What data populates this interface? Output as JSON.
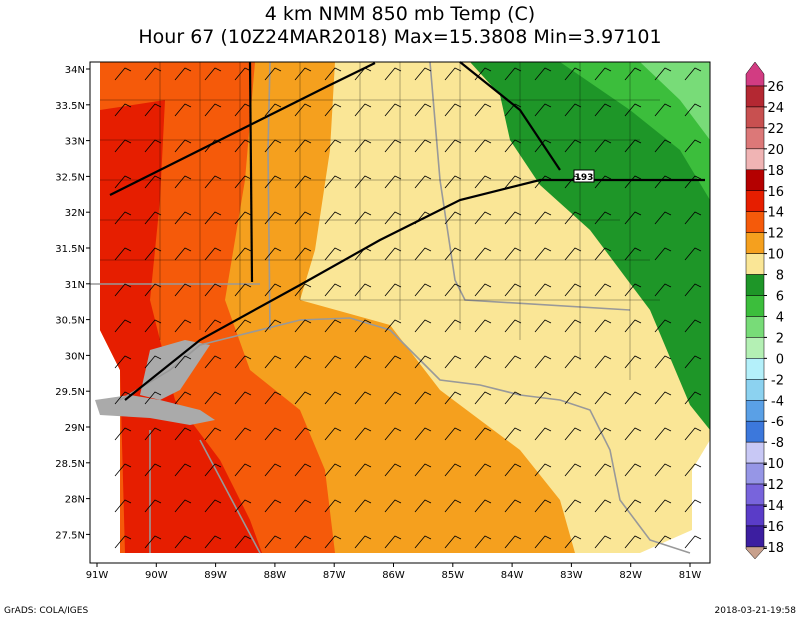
{
  "header": {
    "title": "4 km NMM 850 mb Temp (C)",
    "subtitle": "Hour 67 (10Z24MAR2018) Max=15.3808 Min=3.97101"
  },
  "map": {
    "lon_labels": [
      "91W",
      "90W",
      "89W",
      "88W",
      "87W",
      "86W",
      "85W",
      "84W",
      "83W",
      "82W",
      "81W"
    ],
    "lat_labels": [
      "34N",
      "33.5N",
      "33N",
      "32.5N",
      "32N",
      "31.5N",
      "31N",
      "30.5N",
      "30N",
      "29.5N",
      "29N",
      "28.5N",
      "28N",
      "27.5N"
    ],
    "road_label": "193"
  },
  "colorbar": {
    "ticks": [
      26,
      24,
      22,
      20,
      18,
      16,
      14,
      12,
      10,
      8,
      6,
      4,
      2,
      0,
      -2,
      -4,
      -6,
      -8,
      -10,
      -12,
      -14,
      -16,
      -18
    ],
    "colors": [
      "#d23c82",
      "#b42832",
      "#c85050",
      "#dc7878",
      "#f0b4b4",
      "#b40000",
      "#e61e00",
      "#f55a0a",
      "#f5a01e",
      "#fae696",
      "#1e9628",
      "#3cbe3c",
      "#78dc78",
      "#b4f0b4",
      "#b4f0fa",
      "#8cd2f0",
      "#5aa0e6",
      "#3c78dc",
      "#c8c8f5",
      "#9696e6",
      "#7864dc",
      "#5a3cc8",
      "#3c1ea0",
      "#c8a08c"
    ]
  },
  "footer": {
    "left": "GrADS: COLA/IGES",
    "right": "2018-03-21-19:58"
  }
}
